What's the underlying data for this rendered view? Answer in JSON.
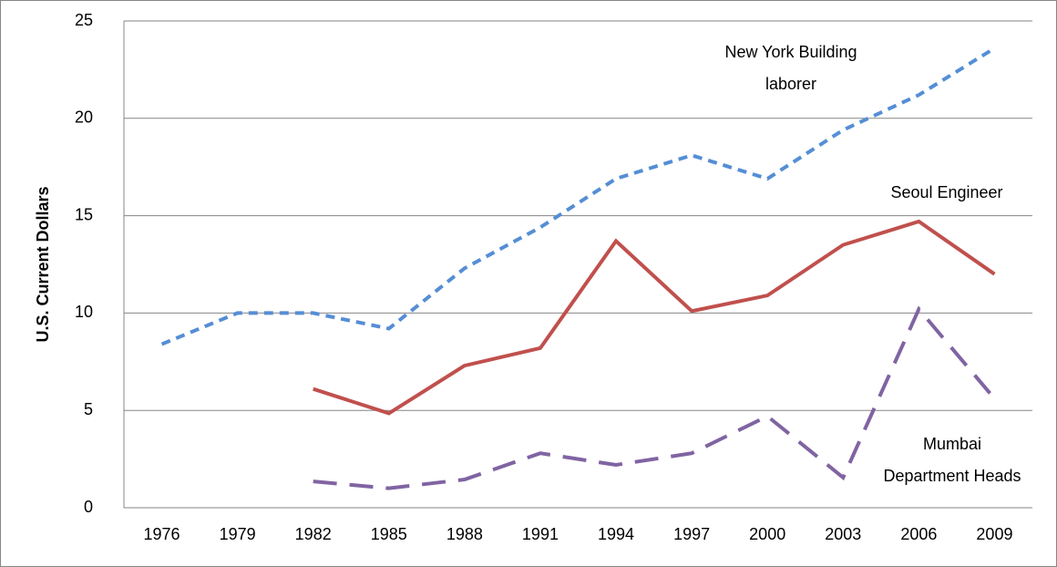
{
  "chart_data": {
    "type": "line",
    "ylabel": "U.S. Current Dollars",
    "categories": [
      "1976",
      "1979",
      "1982",
      "1985",
      "1988",
      "1991",
      "1994",
      "1997",
      "2000",
      "2003",
      "2006",
      "2009"
    ],
    "series": [
      {
        "name": "New York Building laborer",
        "color": "#558ed5",
        "dash": "short",
        "values": [
          8.4,
          10.0,
          10.0,
          9.2,
          12.3,
          14.4,
          16.9,
          18.1,
          16.9,
          19.4,
          21.2,
          23.6
        ]
      },
      {
        "name": "Seoul Engineer",
        "color": "#c0504d",
        "dash": "solid",
        "values": [
          null,
          null,
          6.1,
          4.85,
          7.3,
          8.2,
          13.7,
          10.1,
          10.9,
          13.5,
          14.7,
          12.0
        ]
      },
      {
        "name": "Mumbai Department Heads",
        "color": "#8064a2",
        "dash": "long",
        "values": [
          null,
          null,
          1.35,
          1.0,
          1.45,
          2.8,
          2.2,
          2.8,
          4.7,
          1.55,
          10.2,
          5.6
        ]
      }
    ],
    "annotations": [
      [
        "New York Building",
        "laborer"
      ],
      [
        "Seoul Engineer"
      ],
      [
        "Mumbai",
        "Department Heads"
      ]
    ],
    "ylim": [
      0,
      25
    ],
    "yticks": [
      0,
      5,
      10,
      15,
      20,
      25
    ],
    "grid": true
  }
}
